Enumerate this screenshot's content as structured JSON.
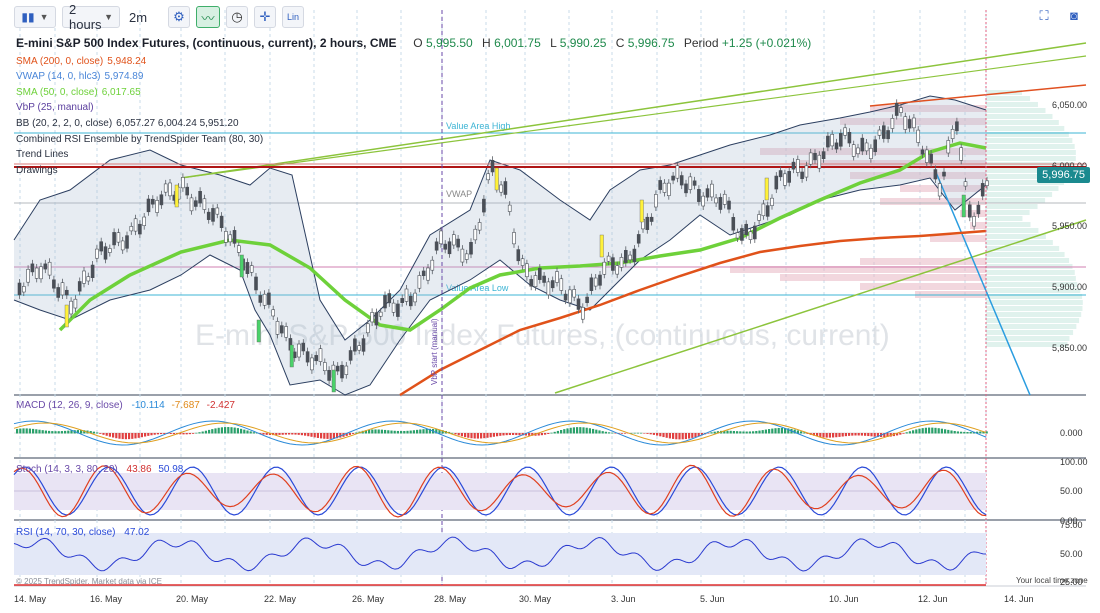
{
  "toolbar": {
    "timeframe_label": "2 hours",
    "interval_label": "2m",
    "chart_type_icon": "candles-icon",
    "settings_icon": "gear-icon",
    "indicators_icon": "indicator-icon",
    "clock_icon": "clock-icon",
    "crosshair_icon": "crosshair-icon",
    "log_label": "Lin",
    "fullscreen_icon": "expand-icon",
    "screenshot_icon": "camera-icon"
  },
  "legend": {
    "title": "E-mini S&P 500 Index Futures, (continuous, current), 2 hours, CME",
    "open_label": "O",
    "open": "5,995.50",
    "high_label": "H",
    "high": "6,001.75",
    "low_label": "L",
    "low": "5,990.25",
    "close_label": "C",
    "close": "5,996.75",
    "period_label": "Period",
    "period": "+1.25 (+0.021%)",
    "rows": [
      {
        "name": "SMA (200, 0, close)",
        "value": "5,948.24",
        "color": "#e0521a"
      },
      {
        "name": "VWAP (14, 0, hlc3)",
        "value": "5,974.89",
        "color": "#4a86d8"
      },
      {
        "name": "SMA (50, 0, close)",
        "value": "6,017.65",
        "color": "#6ed13a"
      },
      {
        "name": "VbP (25, manual)",
        "value": "",
        "color": "#5b3f9e"
      },
      {
        "name": "BB (20, 2, 2, 0, close)",
        "value": "6,057.27  6,004.24  5,951.20",
        "color": "#2a3140"
      },
      {
        "name": "Combined RSI Ensemble by TrendSpider Team (80, 30)",
        "value": "",
        "color": "#2a3140"
      },
      {
        "name": "Trend Lines",
        "value": "",
        "color": "#2a3140"
      },
      {
        "name": "Drawings",
        "value": "",
        "color": "#2a3140"
      }
    ]
  },
  "annotations": {
    "value_area_high": "Value Area High",
    "value_area_low": "Value Area Low",
    "vwap": "VWAP",
    "vbp_start": "VbP start (manual)",
    "watermark": "E-mini S&P 500 Index Futures, (continuous, current)"
  },
  "current_price": "5,996.75",
  "price_axis": [
    "6,050.00",
    "6,000.00",
    "5,950.00",
    "5,900.00",
    "5,850.00"
  ],
  "macd": {
    "label": "MACD (12, 26, 9, close)",
    "v1": "-10.114",
    "v2": "-7.687",
    "v3": "-2.427",
    "axis": [
      "0.000"
    ]
  },
  "stoch": {
    "label": "Stoch (14, 3, 3, 80, 20)",
    "v1": "43.86",
    "v2": "50.98",
    "axis": [
      "100.00",
      "50.00",
      "0.00"
    ]
  },
  "rsi": {
    "label": "RSI (14, 70, 30, close)",
    "v1": "47.02",
    "axis": [
      "75.00",
      "50.00",
      "25.00"
    ]
  },
  "x_axis": [
    "14. May",
    "16. May",
    "20. May",
    "22. May",
    "26. May",
    "28. May",
    "30. May",
    "3. Jun",
    "5. Jun",
    "10. Jun",
    "12. Jun",
    "14. Jun"
  ],
  "footer": {
    "copyright": "© 2025 TrendSpider. Market data via ICE",
    "local_time": "Your local time zone"
  },
  "colors": {
    "sma200": "#e0521a",
    "vwap": "#4a86d8",
    "sma50": "#6ed13a",
    "bb": "#2a4a7a",
    "up": "#4a6a4a",
    "value_area": "#3cb4d4",
    "trend": "#8cc43c",
    "blue_trend": "#2a9de0",
    "resistance": "#b01515"
  }
}
